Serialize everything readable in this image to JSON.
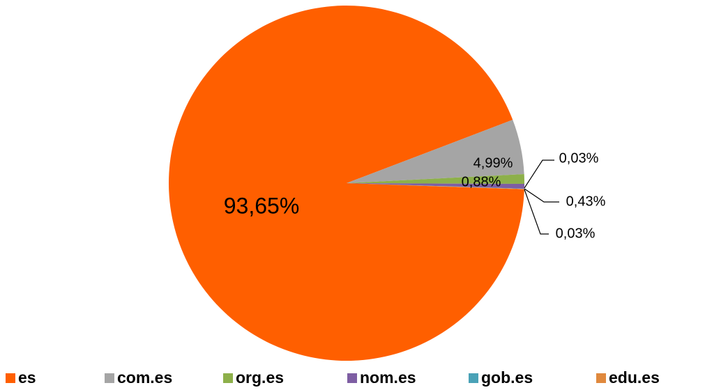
{
  "chart_data": {
    "type": "pie",
    "categories": [
      "es",
      "com.es",
      "org.es",
      "nom.es",
      "gob.es",
      "edu.es"
    ],
    "values": [
      93.65,
      4.99,
      0.88,
      0.43,
      0.03,
      0.03
    ],
    "value_labels": [
      "93,65%",
      "4,99%",
      "0,88%",
      "0,43%",
      "0,03%",
      "0,03%"
    ],
    "colors": [
      "#ff5f00",
      "#a5a5a5",
      "#8db04a",
      "#7e5ea3",
      "#4aa2b7",
      "#e0893d"
    ],
    "legend": "bottom"
  }
}
